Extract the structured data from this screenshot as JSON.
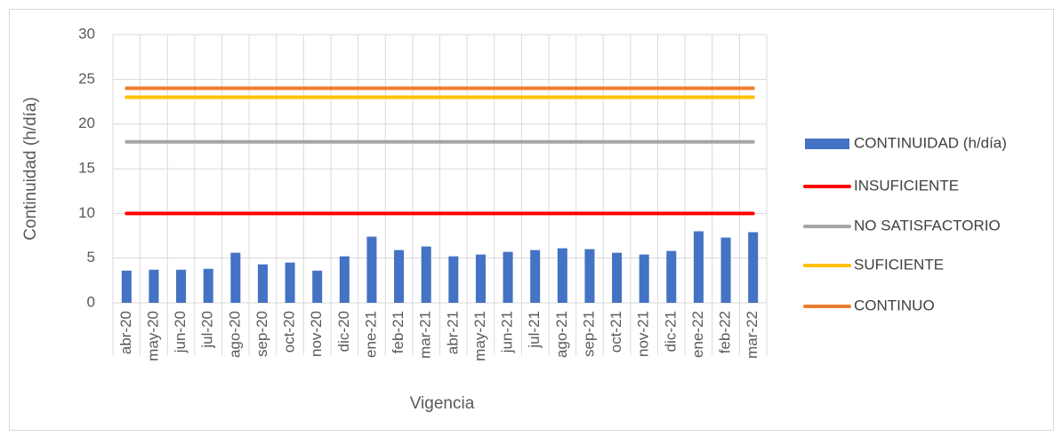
{
  "chart_data": {
    "type": "bar",
    "x_label": "Vigencia",
    "y_label": "Continuidad (h/día)",
    "categories": [
      "abr-20",
      "may-20",
      "jun-20",
      "jul-20",
      "ago-20",
      "sep-20",
      "oct-20",
      "nov-20",
      "dic-20",
      "ene-21",
      "feb-21",
      "mar-21",
      "abr-21",
      "may-21",
      "jun-21",
      "jul-21",
      "ago-21",
      "sep-21",
      "oct-21",
      "nov-21",
      "dic-21",
      "ene-22",
      "feb-22",
      "mar-22"
    ],
    "series": [
      {
        "name": "CONTINUIDAD (h/día)",
        "type": "bar",
        "color": "#4472c4",
        "values": [
          3.6,
          3.7,
          3.7,
          3.8,
          5.6,
          4.3,
          4.5,
          3.6,
          5.2,
          7.4,
          5.9,
          6.3,
          5.2,
          5.4,
          5.7,
          5.9,
          6.1,
          6.0,
          5.6,
          5.4,
          5.8,
          8.0,
          7.3,
          7.9
        ]
      },
      {
        "name": "INSUFICIENTE",
        "type": "line",
        "color": "#ff0000",
        "values": [
          10,
          10,
          10,
          10,
          10,
          10,
          10,
          10,
          10,
          10,
          10,
          10,
          10,
          10,
          10,
          10,
          10,
          10,
          10,
          10,
          10,
          10,
          10,
          10
        ]
      },
      {
        "name": "NO SATISFACTORIO",
        "type": "line",
        "color": "#a5a5a5",
        "values": [
          18,
          18,
          18,
          18,
          18,
          18,
          18,
          18,
          18,
          18,
          18,
          18,
          18,
          18,
          18,
          18,
          18,
          18,
          18,
          18,
          18,
          18,
          18,
          18
        ]
      },
      {
        "name": "SUFICIENTE",
        "type": "line",
        "color": "#ffc000",
        "values": [
          23,
          23,
          23,
          23,
          23,
          23,
          23,
          23,
          23,
          23,
          23,
          23,
          23,
          23,
          23,
          23,
          23,
          23,
          23,
          23,
          23,
          23,
          23,
          23
        ]
      },
      {
        "name": "CONTINUO",
        "type": "line",
        "color": "#ed7d31",
        "values": [
          24,
          24,
          24,
          24,
          24,
          24,
          24,
          24,
          24,
          24,
          24,
          24,
          24,
          24,
          24,
          24,
          24,
          24,
          24,
          24,
          24,
          24,
          24,
          24
        ]
      }
    ],
    "ylim": [
      0,
      30
    ],
    "yticks": [
      0,
      5,
      10,
      15,
      20,
      25,
      30
    ],
    "grid": true,
    "legend": "right"
  }
}
